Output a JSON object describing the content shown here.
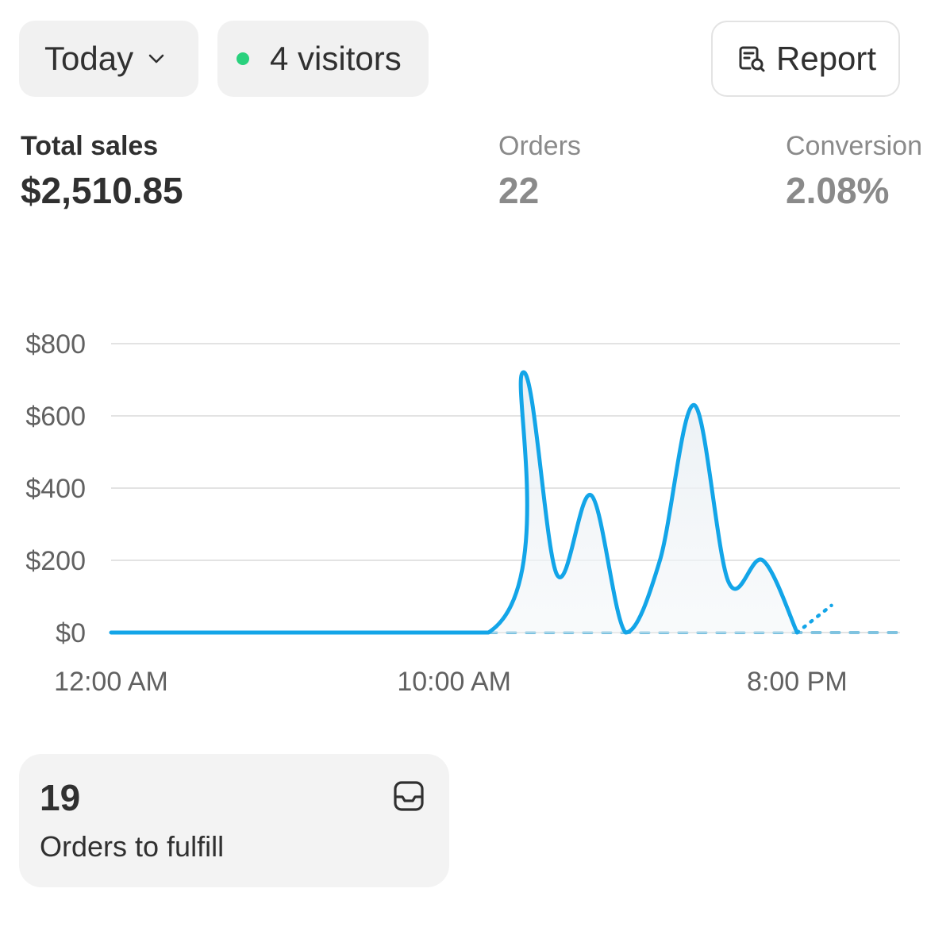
{
  "header": {
    "range_label": "Today",
    "visitors_label": "4 visitors",
    "live_color": "#29d17d",
    "report_label": "Report"
  },
  "metrics": {
    "sales_label": "Total sales",
    "sales_value": "$2,510.85",
    "orders_label": "Orders",
    "orders_value": "22",
    "conversion_label": "Conversion",
    "conversion_value": "2.08%"
  },
  "chart_data": {
    "type": "line",
    "x_tick_labels": [
      "12:00 AM",
      "10:00 AM",
      "8:00 PM"
    ],
    "y_tick_labels": [
      "$800",
      "$600",
      "$400",
      "$200",
      "$0"
    ],
    "ylim": [
      0,
      800
    ],
    "grid": true,
    "series": [
      {
        "style": "solid",
        "color": "#13a5e8",
        "points": [
          [
            "12:00 AM",
            0
          ],
          [
            "11:00 AM",
            0
          ],
          [
            "12:00 PM",
            720
          ],
          [
            "1:00 PM",
            160
          ],
          [
            "2:00 PM",
            380
          ],
          [
            "3:00 PM",
            0
          ],
          [
            "4:00 PM",
            200
          ],
          [
            "5:00 PM",
            630
          ],
          [
            "6:00 PM",
            140
          ],
          [
            "7:00 PM",
            200
          ],
          [
            "8:00 PM",
            0
          ]
        ]
      },
      {
        "style": "dotted",
        "color": "#13a5e8",
        "points": [
          [
            "8:00 PM",
            0
          ],
          [
            "9:00 PM",
            75
          ]
        ]
      },
      {
        "style": "dashed-baseline",
        "color": "#7fc3e0",
        "points": [
          [
            "11:00 AM",
            0
          ],
          [
            "11:00 PM",
            0
          ]
        ]
      }
    ]
  },
  "fulfill": {
    "count": "19",
    "label": "Orders to fulfill"
  },
  "icons": {
    "range": "chevron-down-icon",
    "report": "report-search-icon",
    "fulfill": "inbox-icon"
  }
}
